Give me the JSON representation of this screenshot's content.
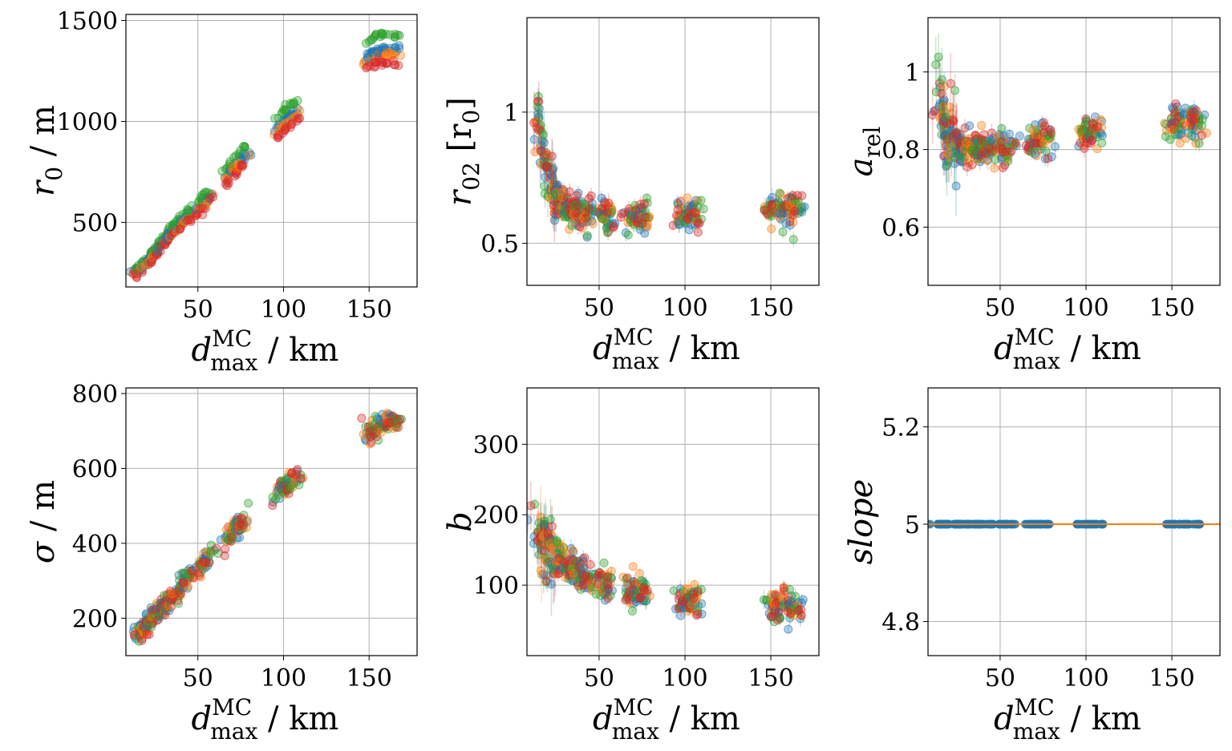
{
  "chart_data": [
    {
      "type": "scatter",
      "id": "r0",
      "ylabel": "r0 / m",
      "ylabel_parts": {
        "base": "r",
        "sub": "0",
        "rest": " / m"
      },
      "xlabel": "d_max^MC / km",
      "xlabel_parts": {
        "base": "d",
        "sup": "MC",
        "sub": "max",
        "rest": " / km"
      },
      "xlim": [
        8,
        178
      ],
      "ylim": [
        180,
        1530
      ],
      "xticks": [
        50,
        100,
        150
      ],
      "yticks": [
        500,
        1000,
        1500
      ],
      "series_colors": {
        "blue": "#1f77b4",
        "orange": "#ff7f0e",
        "green": "#2ca02c",
        "red": "#d62728"
      },
      "notes": "clusters of points following a rising trend; at each d value the green series is highest, then blue, orange, red",
      "trend": [
        [
          15,
          260
        ],
        [
          20,
          300
        ],
        [
          25,
          350
        ],
        [
          30,
          410
        ],
        [
          35,
          460
        ],
        [
          40,
          500
        ],
        [
          45,
          540
        ],
        [
          55,
          610
        ],
        [
          70,
          770
        ],
        [
          100,
          1000
        ],
        [
          155,
          1360
        ]
      ]
    },
    {
      "type": "scatter",
      "id": "r02",
      "ylabel": "r02 [r0]",
      "ylabel_parts": {
        "base": "r",
        "sub": "02",
        "rest": " [r",
        "sub2": "0",
        "rest2": "]"
      },
      "xlabel": "d_max^MC / km",
      "xlim": [
        8,
        178
      ],
      "ylim": [
        0.34,
        1.36
      ],
      "xticks": [
        50,
        100,
        150
      ],
      "yticks": [
        0.5,
        1.0
      ],
      "notes": "values near 1.0 at small d dropping to about 0.6 for d above 40 km",
      "trend": [
        [
          15,
          0.95
        ],
        [
          18,
          0.8
        ],
        [
          22,
          0.72
        ],
        [
          28,
          0.66
        ],
        [
          35,
          0.63
        ],
        [
          50,
          0.6
        ],
        [
          70,
          0.6
        ],
        [
          100,
          0.61
        ],
        [
          155,
          0.63
        ]
      ]
    },
    {
      "type": "scatter",
      "id": "arel",
      "ylabel": "a_rel",
      "ylabel_parts": {
        "base": "a",
        "sub": "rel"
      },
      "xlabel": "d_max^MC / km",
      "xlim": [
        8,
        178
      ],
      "ylim": [
        0.45,
        1.14
      ],
      "xticks": [
        50,
        100,
        150
      ],
      "yticks": [
        0.6,
        0.8,
        1.0
      ],
      "notes": "values near 1.0 at smallest d, about 0.8 in mid range rising to about 0.87 at 160 km",
      "trend": [
        [
          14,
          0.95
        ],
        [
          18,
          0.85
        ],
        [
          25,
          0.81
        ],
        [
          40,
          0.8
        ],
        [
          55,
          0.8
        ],
        [
          70,
          0.82
        ],
        [
          100,
          0.84
        ],
        [
          160,
          0.87
        ]
      ]
    },
    {
      "type": "scatter",
      "id": "sigma",
      "ylabel": "σ / m",
      "ylabel_parts": {
        "base": "σ",
        "rest": " / m"
      },
      "xlabel": "d_max^MC / km",
      "xlim": [
        8,
        178
      ],
      "ylim": [
        100,
        815
      ],
      "xticks": [
        50,
        100,
        150
      ],
      "yticks": [
        200,
        400,
        600,
        800
      ],
      "notes": "linear increase with d",
      "trend": [
        [
          15,
          160
        ],
        [
          25,
          210
        ],
        [
          35,
          260
        ],
        [
          45,
          310
        ],
        [
          55,
          360
        ],
        [
          70,
          430
        ],
        [
          100,
          550
        ],
        [
          160,
          725
        ]
      ]
    },
    {
      "type": "scatter",
      "id": "b",
      "ylabel": "b",
      "ylabel_parts": {
        "base": "b"
      },
      "xlabel": "d_max^MC / km",
      "xlim": [
        8,
        178
      ],
      "ylim": [
        0,
        380
      ],
      "xticks": [
        50,
        100,
        150
      ],
      "yticks": [
        100,
        200,
        300
      ],
      "notes": "decreasing from about 170 at small d to about 70 at 160 km",
      "trend": [
        [
          14,
          175
        ],
        [
          20,
          150
        ],
        [
          30,
          130
        ],
        [
          40,
          115
        ],
        [
          55,
          100
        ],
        [
          70,
          90
        ],
        [
          100,
          78
        ],
        [
          160,
          70
        ]
      ]
    },
    {
      "type": "scatter",
      "id": "slope",
      "ylabel": "slope",
      "ylabel_parts": {
        "base": "slope"
      },
      "xlabel": "d_max^MC / km",
      "xlim": [
        8,
        178
      ],
      "ylim": [
        4.73,
        5.28
      ],
      "xticks": [
        50,
        100,
        150
      ],
      "yticks": [
        4.8,
        5.0,
        5.2
      ],
      "reference_line": 5.0,
      "notes": "all points exactly at 5.0 with an orange horizontal line at 5.0",
      "trend": [
        [
          15,
          5.0
        ],
        [
          160,
          5.0
        ]
      ]
    }
  ],
  "clusters_x": [
    15,
    18,
    21,
    24,
    27,
    30,
    33,
    36,
    40,
    44,
    52,
    55,
    68,
    72,
    76,
    98,
    102,
    106,
    150,
    155,
    160,
    165
  ]
}
